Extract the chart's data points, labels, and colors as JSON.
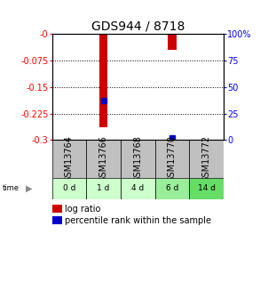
{
  "title": "GDS944 / 8718",
  "samples": [
    "GSM13764",
    "GSM13766",
    "GSM13768",
    "GSM13770",
    "GSM13772"
  ],
  "timepoints": [
    "0 d",
    "1 d",
    "4 d",
    "6 d",
    "14 d"
  ],
  "log_ratios": [
    0.0,
    -0.265,
    0.0,
    -0.045,
    0.0
  ],
  "percentile_ranks": [
    null,
    37,
    null,
    2,
    null
  ],
  "ylim_left": [
    -0.3,
    0.0
  ],
  "ylim_right": [
    0,
    100
  ],
  "yticks_left": [
    0.0,
    -0.075,
    -0.15,
    -0.225,
    -0.3
  ],
  "ytick_labels_left": [
    "-0",
    "-0.075",
    "-0.15",
    "-0.225",
    "-0.3"
  ],
  "yticks_right": [
    0,
    25,
    50,
    75,
    100
  ],
  "ytick_labels_right": [
    "0",
    "25",
    "50",
    "75",
    "100%"
  ],
  "bar_color": "#cc0000",
  "point_color": "#0000cc",
  "grid_color": "#000000",
  "sample_bg_color": "#c0c0c0",
  "time_bg_colors": [
    "#ccffcc",
    "#ccffcc",
    "#ccffcc",
    "#99ee99",
    "#66dd66"
  ],
  "title_fontsize": 10,
  "label_fontsize": 7,
  "tick_fontsize": 7,
  "legend_fontsize": 7,
  "time_label_fontsize": 8
}
